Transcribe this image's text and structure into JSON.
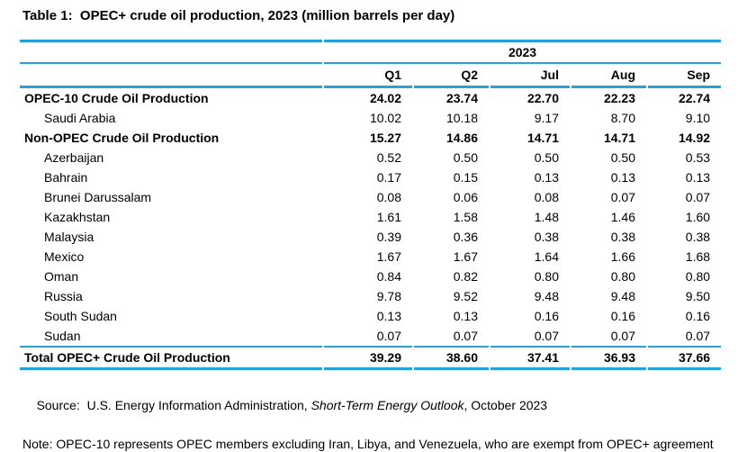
{
  "chart_data": {
    "type": "table",
    "title": "Table 1:  OPEC+ crude oil production, 2023 (million barrels per day)",
    "year_header": "2023",
    "columns": [
      "Q1",
      "Q2",
      "Jul",
      "Aug",
      "Sep"
    ],
    "rows": [
      {
        "label": "OPEC-10 Crude Oil Production",
        "style": "bold",
        "values": [
          "24.02",
          "23.74",
          "22.70",
          "22.23",
          "22.74"
        ]
      },
      {
        "label": "Saudi Arabia",
        "style": "indent",
        "values": [
          "10.02",
          "10.18",
          "9.17",
          "8.70",
          "9.10"
        ]
      },
      {
        "label": "Non-OPEC Crude Oil Production",
        "style": "bold",
        "values": [
          "15.27",
          "14.86",
          "14.71",
          "14.71",
          "14.92"
        ]
      },
      {
        "label": "Azerbaijan",
        "style": "indent",
        "values": [
          "0.52",
          "0.50",
          "0.50",
          "0.50",
          "0.53"
        ]
      },
      {
        "label": "Bahrain",
        "style": "indent",
        "values": [
          "0.17",
          "0.15",
          "0.13",
          "0.13",
          "0.13"
        ]
      },
      {
        "label": "Brunei Darussalam",
        "style": "indent",
        "values": [
          "0.08",
          "0.06",
          "0.08",
          "0.07",
          "0.07"
        ]
      },
      {
        "label": "Kazakhstan",
        "style": "indent",
        "values": [
          "1.61",
          "1.58",
          "1.48",
          "1.46",
          "1.60"
        ]
      },
      {
        "label": "Malaysia",
        "style": "indent",
        "values": [
          "0.39",
          "0.36",
          "0.38",
          "0.38",
          "0.38"
        ]
      },
      {
        "label": "Mexico",
        "style": "indent",
        "values": [
          "1.67",
          "1.67",
          "1.64",
          "1.66",
          "1.68"
        ]
      },
      {
        "label": "Oman",
        "style": "indent",
        "values": [
          "0.84",
          "0.82",
          "0.80",
          "0.80",
          "0.80"
        ]
      },
      {
        "label": "Russia",
        "style": "indent",
        "values": [
          "9.78",
          "9.52",
          "9.48",
          "9.48",
          "9.50"
        ]
      },
      {
        "label": "South Sudan",
        "style": "indent",
        "values": [
          "0.13",
          "0.13",
          "0.16",
          "0.16",
          "0.16"
        ]
      },
      {
        "label": "Sudan",
        "style": "indent",
        "values": [
          "0.07",
          "0.07",
          "0.07",
          "0.07",
          "0.07"
        ]
      },
      {
        "label": "Total OPEC+ Crude Oil Production",
        "style": "total",
        "values": [
          "39.29",
          "38.60",
          "37.41",
          "36.93",
          "37.66"
        ]
      }
    ]
  },
  "footer": {
    "source_prefix": "Source:  U.S. Energy Information Administration, ",
    "source_italic": "Short-Term Energy Outlook",
    "source_suffix": ", October 2023",
    "note": "Note: OPEC-10 represents OPEC members excluding Iran, Libya, and Venezuela, who are exempt from OPEC+ agreement"
  },
  "colors": {
    "rule": "#24A2DC",
    "text": "#000000"
  }
}
